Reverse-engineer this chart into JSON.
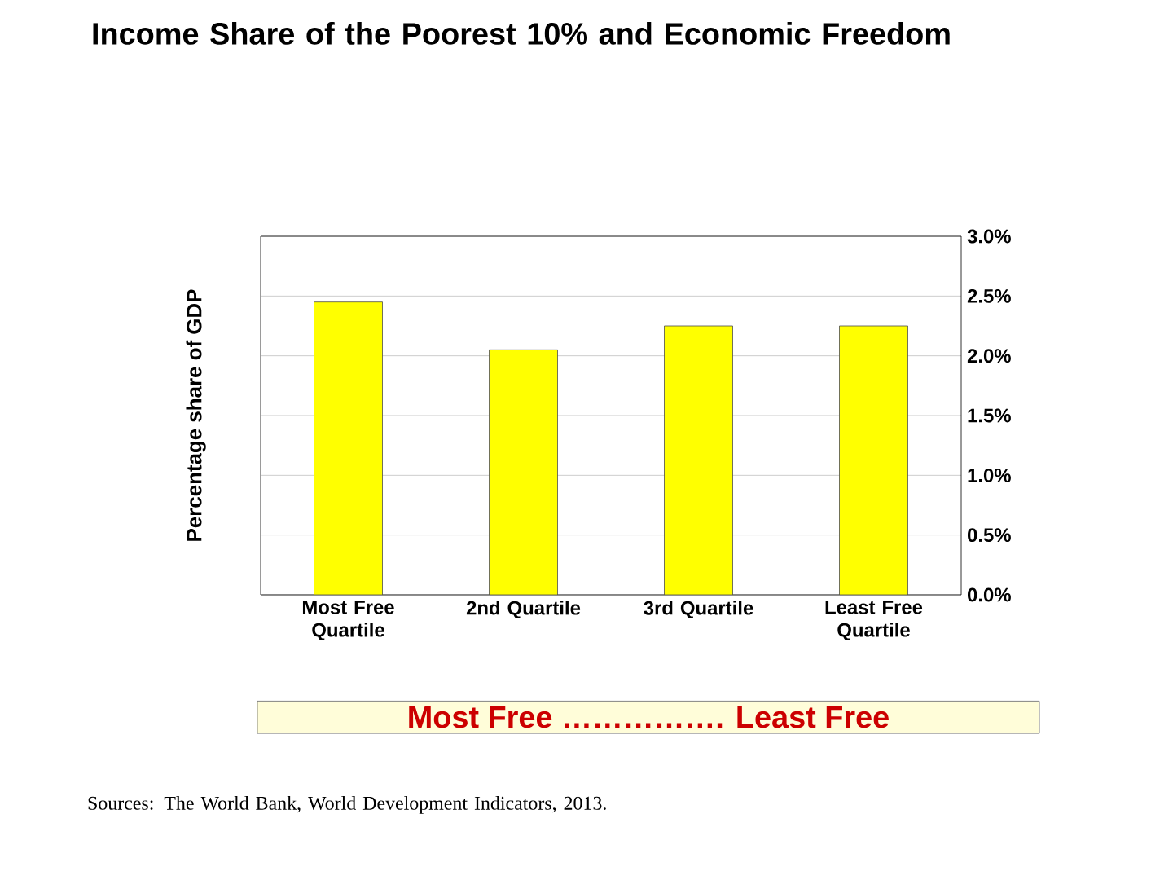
{
  "chart_data": {
    "type": "bar",
    "title": "Income Share of the Poorest 10% and Economic Freedom",
    "ylabel": "Percentage share of GDP",
    "categories": [
      "Most Free Quartile",
      "2nd Quartile",
      "3rd Quartile",
      "Least Free Quartile"
    ],
    "values": [
      2.45,
      2.05,
      2.25,
      2.25
    ],
    "color": "#ffff00",
    "ylim": [
      0,
      3
    ],
    "yticks": [
      {
        "value": 0,
        "label": "0.0%"
      },
      {
        "value": 0.5,
        "label": "0.5%"
      },
      {
        "value": 1,
        "label": "1.0%"
      },
      {
        "value": 1.5,
        "label": "1.5%"
      },
      {
        "value": 2,
        "label": "2.0%"
      },
      {
        "value": 2.5,
        "label": "2.5%"
      },
      {
        "value": 3,
        "label": "3.0%"
      }
    ],
    "grid": "y",
    "annotations": [
      "Most Free ……………. Least Free",
      "Sources: The World Bank, World Development Indicators, 2013."
    ]
  }
}
